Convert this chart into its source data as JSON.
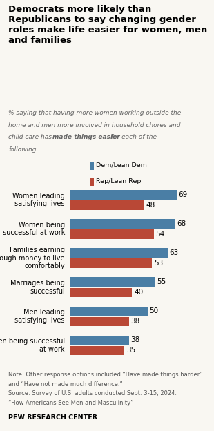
{
  "title": "Democrats more likely than\nRepublicans to say changing gender\nroles make life easier for women, men\nand families",
  "subtitle_line1": "% saying that having more women working outside the",
  "subtitle_line2": "home and men more involved in household chores and",
  "subtitle_line3": "child care has ",
  "subtitle_bold": "made things easier",
  "subtitle_line3_end": " for each of the",
  "subtitle_line4": "following",
  "categories": [
    "Women leading\nsatisfying lives",
    "Women being\nsuccessful at work",
    "Families earning\nenough money to live\ncomfortably",
    "Marriages being\nsuccessful",
    "Men leading\nsatisfying lives",
    "Men being successful\nat work"
  ],
  "dem_values": [
    69,
    68,
    63,
    55,
    50,
    38
  ],
  "rep_values": [
    48,
    54,
    53,
    40,
    38,
    35
  ],
  "dem_color": "#4a7ea5",
  "rep_color": "#b94836",
  "legend_dem": "Dem/Lean Dem",
  "legend_rep": "Rep/Lean Rep",
  "note_line1": "Note: Other response options included “Have made things harder”",
  "note_line2": "and “Have not made much difference.”",
  "note_line3": "Source: Survey of U.S. adults conducted Sept. 3-15, 2024.",
  "note_line4": "“How Americans See Men and Masculinity”",
  "source_bold": "PEW RESEARCH CENTER",
  "xlim": [
    0,
    80
  ],
  "bg_color": "#f9f7f2",
  "bar_height": 0.32,
  "bar_gap": 0.04
}
